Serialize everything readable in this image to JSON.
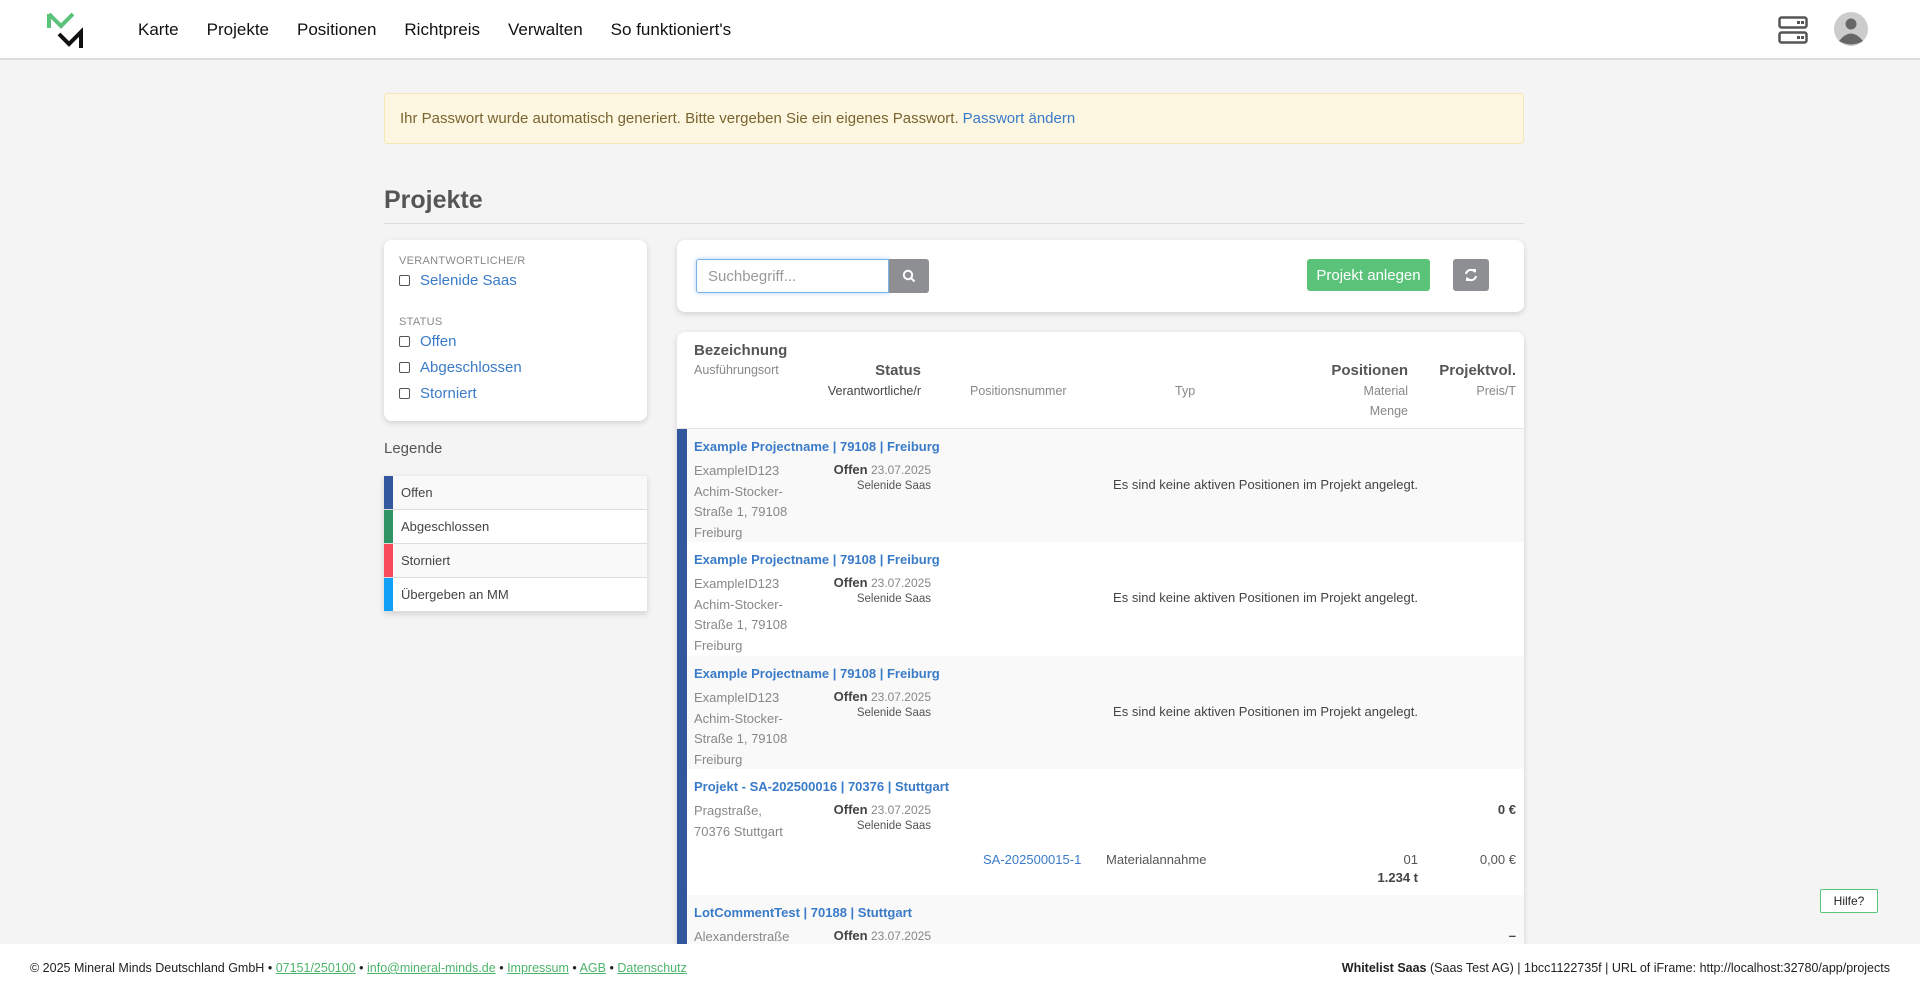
{
  "nav": {
    "items": [
      "Karte",
      "Projekte",
      "Positionen",
      "Richtpreis",
      "Verwalten",
      "So funktioniert's"
    ]
  },
  "alert": {
    "text": "Ihr Passwort wurde automatisch generiert. Bitte vergeben Sie ein eigenes Passwort.",
    "link": "Passwort ändern"
  },
  "page_title": "Projekte",
  "filters": {
    "responsible_label": "VERANTWORTLICHE/R",
    "responsible": [
      "Selenide Saas"
    ],
    "status_label": "STATUS",
    "status": [
      "Offen",
      "Abgeschlossen",
      "Storniert"
    ]
  },
  "legend": {
    "title": "Legende",
    "items": [
      {
        "label": "Offen",
        "color": "#33579e"
      },
      {
        "label": "Abgeschlossen",
        "color": "#2e9466"
      },
      {
        "label": "Storniert",
        "color": "#f74a5a"
      },
      {
        "label": "Übergeben an MM",
        "color": "#10a0f5"
      }
    ]
  },
  "toolbar": {
    "search_placeholder": "Suchbegriff...",
    "add_label": "Projekt anlegen"
  },
  "table": {
    "headers": {
      "name": "Bezeichnung",
      "location": "Ausführungsort",
      "status": "Status",
      "responsible": "Verantwortliche/r",
      "position_number": "Positionsnummer",
      "type": "Typ",
      "positions": "Positionen",
      "material": "Material",
      "quantity": "Menge",
      "volume": "Projektvol.",
      "price": "Preis/T"
    },
    "rows": [
      {
        "title": "Example Projectname | 79108 | Freiburg",
        "address": "ExampleID123 Achim-Stocker-Straße 1, 79108 Freiburg",
        "status": "Offen",
        "date": "23.07.2025",
        "responsible": "Selenide Saas",
        "empty": "Es sind keine aktiven Positionen im Projekt angelegt."
      },
      {
        "title": "Example Projectname | 79108 | Freiburg",
        "address": "ExampleID123 Achim-Stocker-Straße 1, 79108 Freiburg",
        "status": "Offen",
        "date": "23.07.2025",
        "responsible": "Selenide Saas",
        "empty": "Es sind keine aktiven Positionen im Projekt angelegt."
      },
      {
        "title": "Example Projectname | 79108 | Freiburg",
        "address": "ExampleID123 Achim-Stocker-Straße 1, 79108 Freiburg",
        "status": "Offen",
        "date": "23.07.2025",
        "responsible": "Selenide Saas",
        "empty": "Es sind keine aktiven Positionen im Projekt angelegt."
      },
      {
        "title": "Projekt - SA-202500016 | 70376 | Stuttgart",
        "address": "Pragstraße, 70376 Stuttgart",
        "status": "Offen",
        "date": "23.07.2025",
        "responsible": "Selenide Saas",
        "volume": "0 €",
        "position": {
          "number": "SA-202500015-1",
          "type": "Materialannahme",
          "material": "01",
          "quantity": "1.234 t",
          "price": "0,00 €"
        }
      },
      {
        "title": "LotCommentTest | 70188 | Stuttgart",
        "address": "Alexanderstraße",
        "status": "Offen",
        "date": "23.07.2025",
        "volume": "–"
      }
    ]
  },
  "help": "Hilfe?",
  "footer": {
    "copyright": "© 2025 Mineral Minds Deutschland GmbH",
    "phone": "07151/250100",
    "email": "info@mineral-minds.de",
    "impressum": "Impressum",
    "agb": "AGB",
    "datenschutz": "Datenschutz",
    "sep": "•",
    "tenant": "Whitelist Saas",
    "tenant_rest": "(Saas Test AG) | 1bcc1122735f | URL of iFrame: http://localhost:32780/app/projects"
  },
  "colors": {
    "accent": "#5bc27a",
    "link": "#3a7bc8",
    "status_open": "#33579e"
  }
}
